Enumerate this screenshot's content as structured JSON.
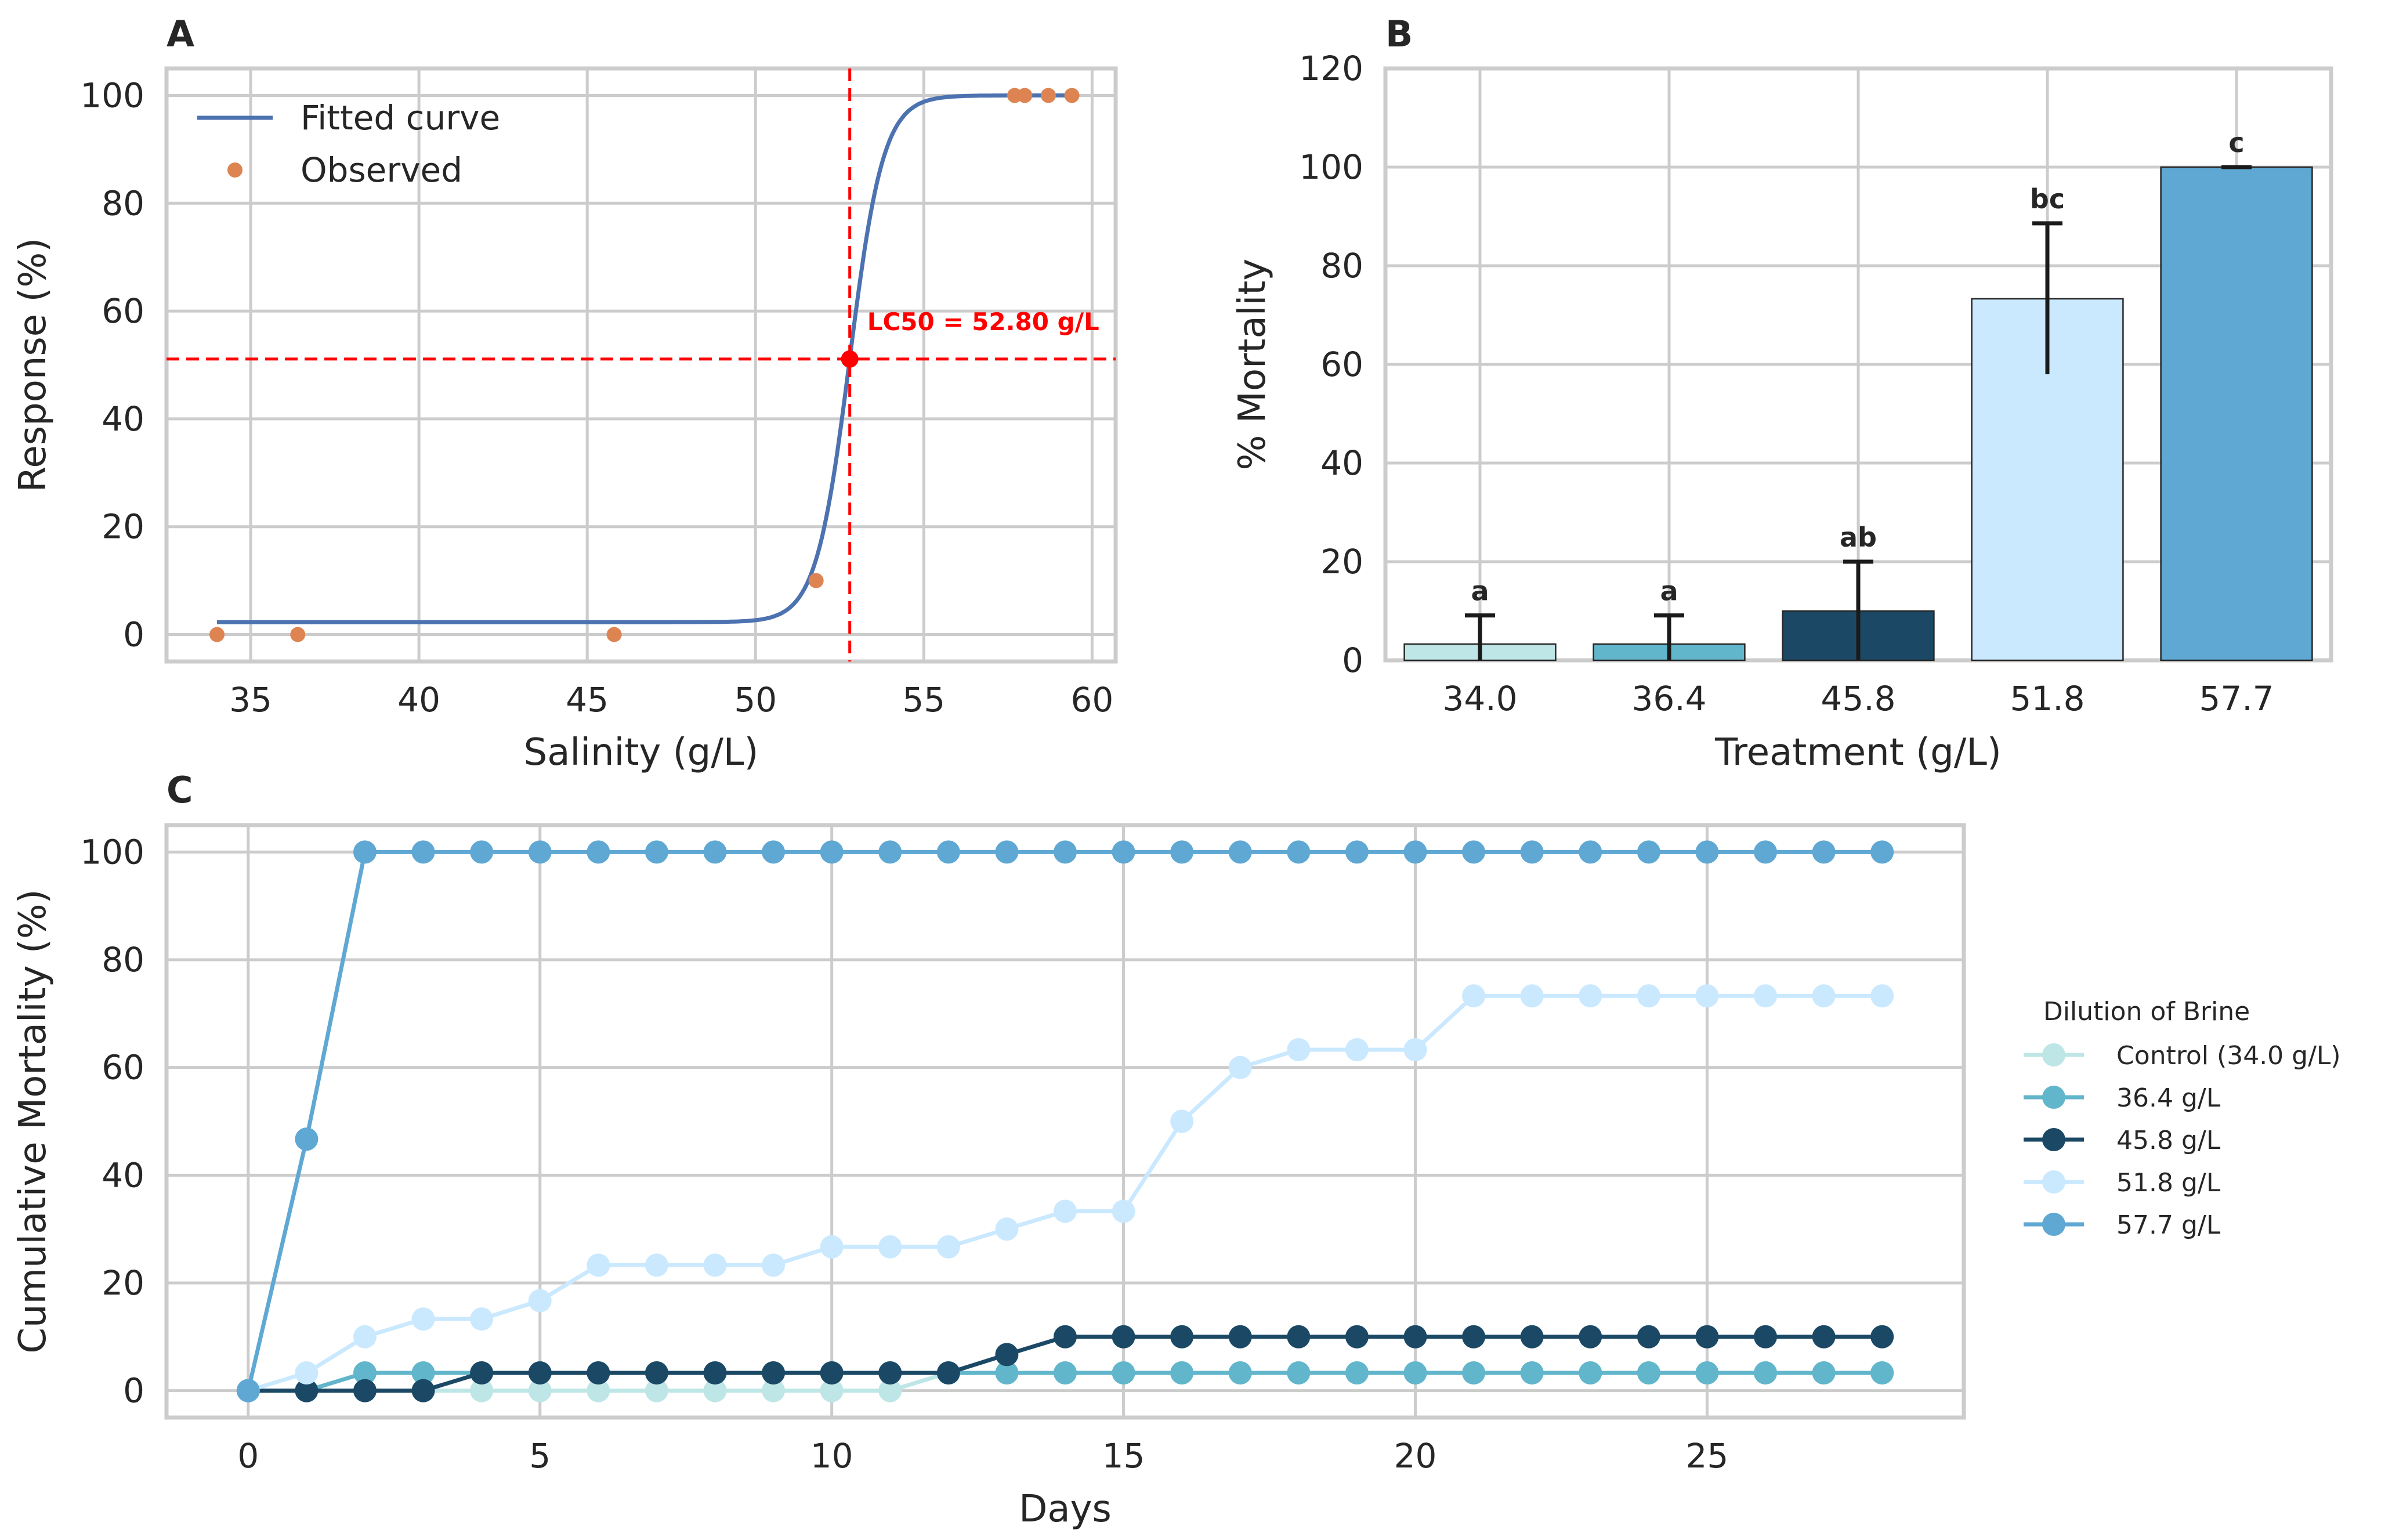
{
  "chart_data": [
    {
      "panel": "A",
      "type": "line",
      "xlabel": "Salinity (g/L)",
      "ylabel": "Response (%)",
      "xlim": [
        32.5,
        60.7
      ],
      "ylim": [
        -5,
        105
      ],
      "xticks": [
        35,
        40,
        45,
        50,
        55,
        60
      ],
      "yticks": [
        0,
        20,
        40,
        60,
        80,
        100
      ],
      "grid": true,
      "legend_position": "upper-left",
      "fitted_curve": {
        "name": "Fitted curve",
        "color": "#4c72b0",
        "bottom": 2.3,
        "top": 100,
        "ec50": 52.8,
        "slope": 2.0,
        "x_range": [
          34.0,
          59.4
        ]
      },
      "observed": {
        "name": "Observed",
        "color": "#dd8452",
        "x": [
          34.0,
          36.4,
          45.8,
          51.8,
          57.7,
          58.0,
          58.7,
          59.4
        ],
        "y": [
          0,
          0,
          0,
          10,
          100,
          100,
          100,
          100
        ]
      },
      "lc50": {
        "x": 52.8,
        "y": 51.1,
        "label": "LC50 = 52.80 g/L",
        "color": "#ff0000"
      }
    },
    {
      "panel": "B",
      "type": "bar",
      "xlabel": "Treatment (g/L)",
      "ylabel": "% Mortality",
      "categories": [
        "34.0",
        "36.4",
        "45.8",
        "51.8",
        "57.7"
      ],
      "values": [
        3.3,
        3.3,
        10.0,
        73.3,
        100.0
      ],
      "errors": [
        5.8,
        5.8,
        10.0,
        15.3,
        0.0
      ],
      "letters": [
        "a",
        "a",
        "ab",
        "bc",
        "c"
      ],
      "colors": [
        "#bfe6e6",
        "#62b6cb",
        "#1b4965",
        "#cae9ff",
        "#5fa8d3"
      ],
      "ylim": [
        0,
        120
      ],
      "yticks": [
        0,
        20,
        40,
        60,
        80,
        100,
        120
      ],
      "grid": true
    },
    {
      "panel": "C",
      "type": "line",
      "xlabel": "Days",
      "ylabel": "Cumulative Mortality (%)",
      "xlim": [
        -1.4,
        29.4
      ],
      "ylim": [
        -5,
        105
      ],
      "xticks": [
        0,
        5,
        10,
        15,
        20,
        25
      ],
      "yticks": [
        0,
        20,
        40,
        60,
        80,
        100
      ],
      "grid": true,
      "legend_position": "right",
      "legend_title": "Dilution of Brine",
      "x": [
        0,
        1,
        2,
        3,
        4,
        5,
        6,
        7,
        8,
        9,
        10,
        11,
        12,
        13,
        14,
        15,
        16,
        17,
        18,
        19,
        20,
        21,
        22,
        23,
        24,
        25,
        26,
        27,
        28
      ],
      "series": [
        {
          "name": "Control (34.0 g/L)",
          "color": "#bfe6e6",
          "values": [
            0,
            0,
            0,
            0,
            0,
            0,
            0,
            0,
            0,
            0,
            0,
            0,
            3.3,
            3.3,
            3.3,
            3.3,
            3.3,
            3.3,
            3.3,
            3.3,
            3.3,
            3.3,
            3.3,
            3.3,
            3.3,
            3.3,
            3.3,
            3.3,
            3.3
          ]
        },
        {
          "name": "36.4 g/L",
          "color": "#62b6cb",
          "values": [
            0,
            0,
            3.3,
            3.3,
            3.3,
            3.3,
            3.3,
            3.3,
            3.3,
            3.3,
            3.3,
            3.3,
            3.3,
            3.3,
            3.3,
            3.3,
            3.3,
            3.3,
            3.3,
            3.3,
            3.3,
            3.3,
            3.3,
            3.3,
            3.3,
            3.3,
            3.3,
            3.3,
            3.3
          ]
        },
        {
          "name": "45.8 g/L",
          "color": "#1b4965",
          "values": [
            0,
            0,
            0,
            0,
            3.3,
            3.3,
            3.3,
            3.3,
            3.3,
            3.3,
            3.3,
            3.3,
            3.3,
            6.7,
            10,
            10,
            10,
            10,
            10,
            10,
            10,
            10,
            10,
            10,
            10,
            10,
            10,
            10,
            10
          ]
        },
        {
          "name": "51.8 g/L",
          "color": "#cae9ff",
          "values": [
            0,
            3.3,
            10,
            13.3,
            13.3,
            16.7,
            23.3,
            23.3,
            23.3,
            23.3,
            26.7,
            26.7,
            26.7,
            30,
            33.3,
            33.3,
            50,
            60,
            63.3,
            63.3,
            63.3,
            73.3,
            73.3,
            73.3,
            73.3,
            73.3,
            73.3,
            73.3,
            73.3
          ]
        },
        {
          "name": "57.7 g/L",
          "color": "#5fa8d3",
          "values": [
            0,
            46.7,
            100,
            100,
            100,
            100,
            100,
            100,
            100,
            100,
            100,
            100,
            100,
            100,
            100,
            100,
            100,
            100,
            100,
            100,
            100,
            100,
            100,
            100,
            100,
            100,
            100,
            100,
            100
          ]
        }
      ]
    }
  ]
}
